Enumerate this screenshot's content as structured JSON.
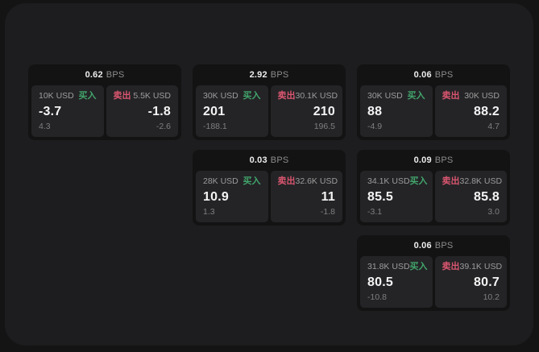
{
  "labels": {
    "bps": "BPS",
    "buy": "买入",
    "sell": "卖出"
  },
  "colors": {
    "outer_bg": "#141414",
    "panel_bg": "#1d1d1f",
    "card_bg": "#131314",
    "tile_bg": "#242427",
    "buy_accent": "#42a56b",
    "sell_accent": "#d9566f",
    "main_text": "#f4f4f4",
    "muted_text": "#9c9c9c"
  },
  "cards": [
    {
      "bps": "0.62",
      "buy": {
        "notional": "10K USD",
        "main": "-3.7",
        "sub": "4.3"
      },
      "sell": {
        "notional": "5.5K USD",
        "main": "-1.8",
        "sub": "-2.6"
      }
    },
    {
      "bps": "2.92",
      "buy": {
        "notional": "30K USD",
        "main": "201",
        "sub": "-188.1"
      },
      "sell": {
        "notional": "30.1K USD",
        "main": "210",
        "sub": "196.5"
      }
    },
    {
      "bps": "0.06",
      "buy": {
        "notional": "30K USD",
        "main": "88",
        "sub": "-4.9"
      },
      "sell": {
        "notional": "30K USD",
        "main": "88.2",
        "sub": "4.7"
      }
    },
    {
      "bps": "0.03",
      "buy": {
        "notional": "28K USD",
        "main": "10.9",
        "sub": "1.3"
      },
      "sell": {
        "notional": "32.6K USD",
        "main": "11",
        "sub": "-1.8"
      }
    },
    {
      "bps": "0.09",
      "buy": {
        "notional": "34.1K USD",
        "main": "85.5",
        "sub": "-3.1"
      },
      "sell": {
        "notional": "32.8K USD",
        "main": "85.8",
        "sub": "3.0"
      }
    },
    {
      "bps": "0.06",
      "buy": {
        "notional": "31.8K USD",
        "main": "80.5",
        "sub": "-10.8"
      },
      "sell": {
        "notional": "39.1K USD",
        "main": "80.7",
        "sub": "10.2"
      }
    }
  ]
}
